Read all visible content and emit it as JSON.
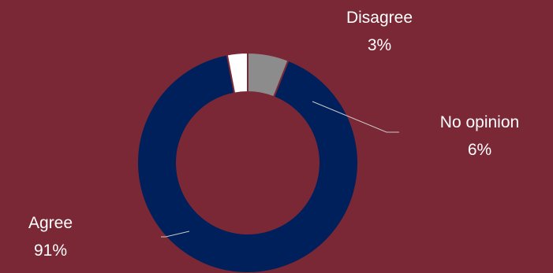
{
  "colors": {
    "background": "#7a2836",
    "agree": "#00205b",
    "no_opinion": "#8c8c8c",
    "disagree": "#ffffff",
    "leader_line": "#c8c8c8",
    "label_text": "#ffffff"
  },
  "chart_data": {
    "type": "pie",
    "variant": "donut",
    "start_angle_deg": 0,
    "direction": "clockwise",
    "slices": [
      {
        "label": "No opinion",
        "value": 6,
        "display": "6%",
        "color": "#8c8c8c"
      },
      {
        "label": "Agree",
        "value": 91,
        "display": "91%",
        "color": "#00205b"
      },
      {
        "label": "Disagree",
        "value": 3,
        "display": "3%",
        "color": "#ffffff"
      }
    ]
  }
}
